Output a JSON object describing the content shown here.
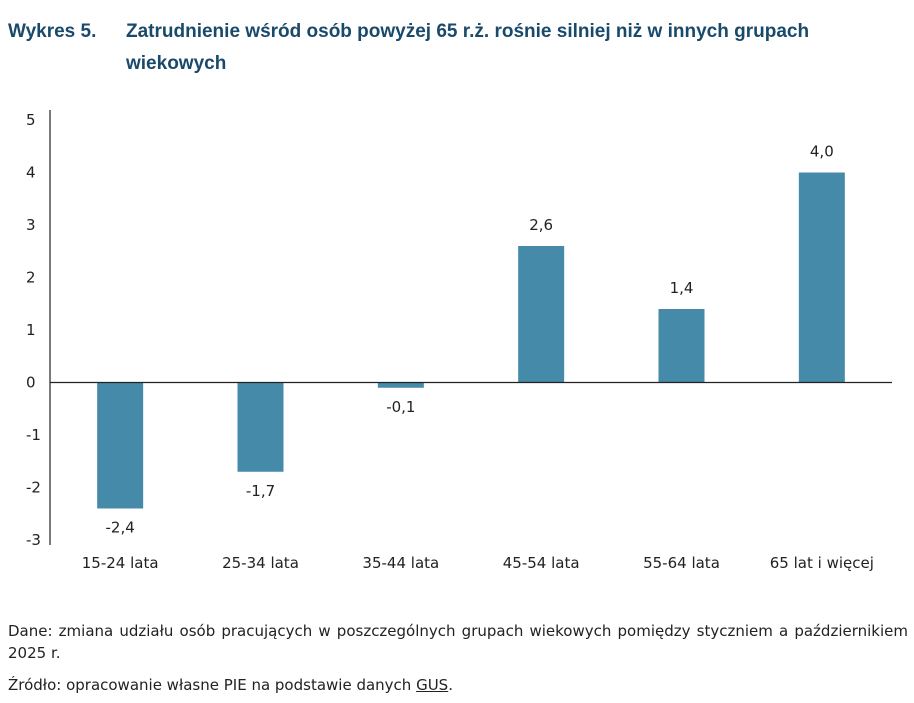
{
  "title": {
    "prefix": "Wykres 5.",
    "text": "Zatrudnienie wśród osób powyżej 65 r.ż. rośnie silniej niż w innych grupach wiekowych"
  },
  "chart_data": {
    "type": "bar",
    "categories": [
      "15-24 lata",
      "25-34 lata",
      "35-44 lata",
      "45-54 lata",
      "55-64 lata",
      "65 lat i więcej"
    ],
    "values": [
      -2.4,
      -1.7,
      -0.1,
      2.6,
      1.4,
      4.0
    ],
    "value_labels": [
      "-2,4",
      "-1,7",
      "-0,1",
      "2,6",
      "1,4",
      "4,0"
    ],
    "ylim": [
      -3,
      5
    ],
    "yticks": [
      5,
      4,
      3,
      2,
      1,
      0,
      -1,
      -2,
      -3
    ],
    "ytick_labels": [
      "5",
      "4",
      "3",
      "2",
      "1",
      "0",
      "-1",
      "-2",
      "-3"
    ],
    "bar_color": "#458aa8",
    "grid": false,
    "legend": "none"
  },
  "notes": {
    "data_label": "Dane: zmiana udziału osób pracujących w poszczególnych grupach wiekowych pomiędzy styczniem a październikiem 2025 r.",
    "source_prefix": "Źródło: opracowanie własne PIE na podstawie danych ",
    "source_link": "GUS",
    "source_suffix": "."
  }
}
